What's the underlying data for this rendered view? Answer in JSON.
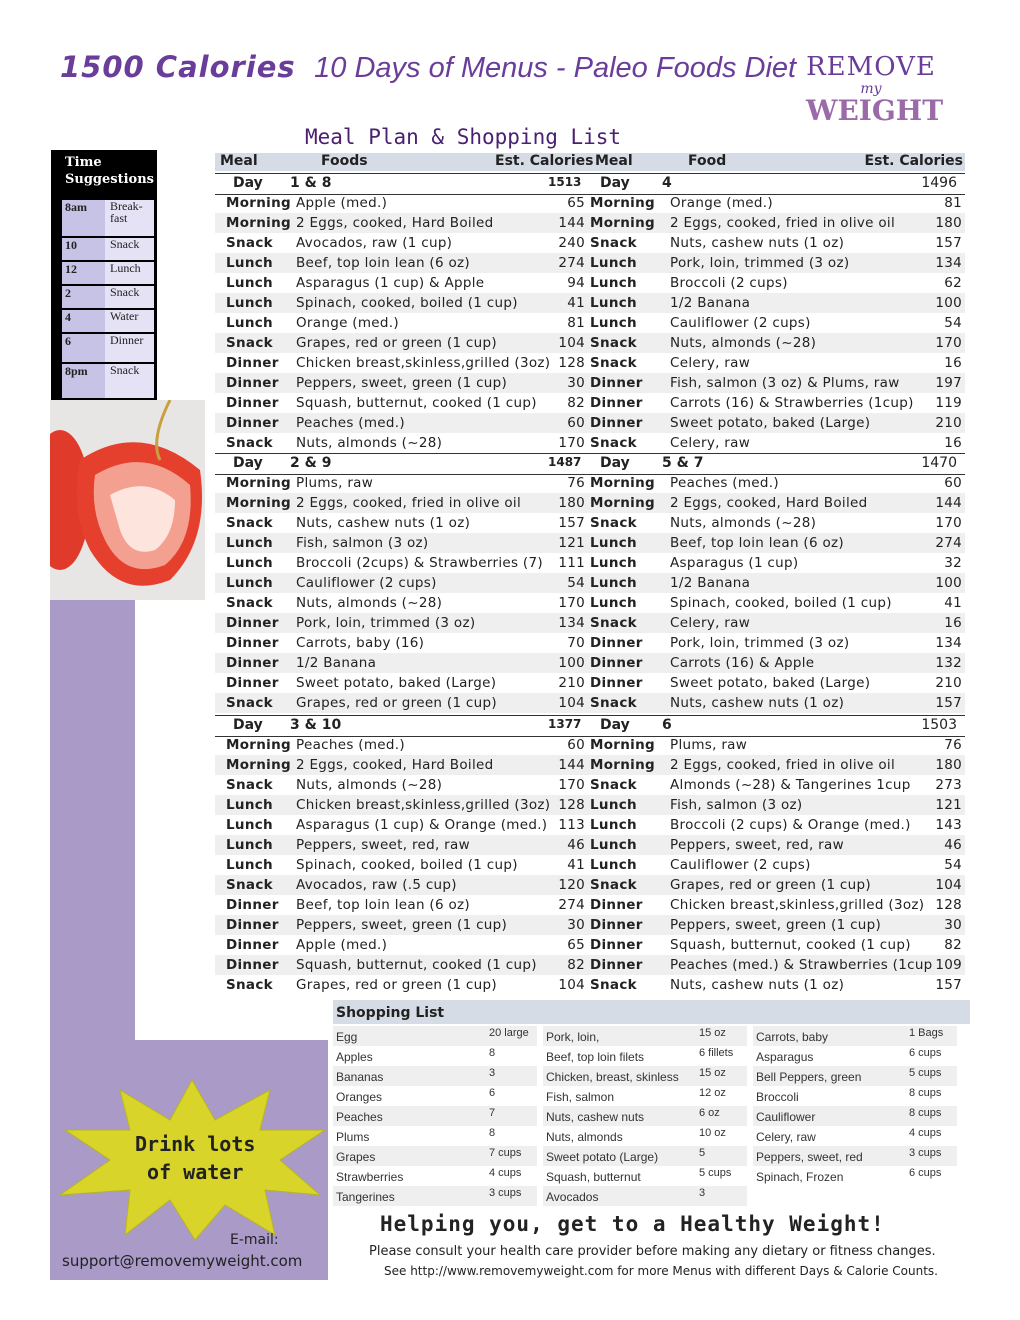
{
  "title": {
    "bold": "1500 Calories",
    "italic": "10 Days of Menus - Paleo Foods Diet"
  },
  "logo": {
    "line1": "REMOVE",
    "line2": "my",
    "line3": "WEIGHT"
  },
  "subtitle": "Meal Plan & Shopping List",
  "time_suggestions": {
    "heading1": "Time",
    "heading2": "Suggestions",
    "rows": [
      [
        "8am",
        "Break-fast"
      ],
      [
        "10",
        "Snack"
      ],
      [
        "12",
        "Lunch"
      ],
      [
        "2",
        "Snack"
      ],
      [
        "4",
        "Water"
      ],
      [
        "6",
        "Dinner"
      ],
      [
        "8pm",
        "Snack"
      ]
    ]
  },
  "header": {
    "meal": "Meal",
    "foods": "Foods",
    "cal": "Est. Calories",
    "meal2": "Meal",
    "food2": "Food",
    "cal2": "Est. Calories"
  },
  "day_label": "Day",
  "blocks": [
    {
      "left_day": "1 & 8",
      "left_total": "1513",
      "right_day": "4",
      "right_total": "1496",
      "rows": [
        [
          "Morning",
          "Apple (med.)",
          "65",
          "Morning",
          "Orange (med.)",
          "81"
        ],
        [
          "Morning",
          "2 Eggs, cooked, Hard Boiled",
          "144",
          "Morning",
          "2 Eggs, cooked, fried in olive oil",
          "180"
        ],
        [
          "Snack",
          "Avocados, raw (1 cup)",
          "240",
          "Snack",
          "Nuts, cashew nuts (1 oz)",
          "157"
        ],
        [
          "Lunch",
          "Beef, top loin lean (6 oz)",
          "274",
          "Lunch",
          "Pork, loin, trimmed (3 oz)",
          "134"
        ],
        [
          "Lunch",
          "Asparagus (1 cup) & Apple",
          "94",
          "Lunch",
          "Broccoli (2 cups)",
          "62"
        ],
        [
          "Lunch",
          "Spinach, cooked, boiled  (1 cup)",
          "41",
          "Lunch",
          "1/2 Banana",
          "100"
        ],
        [
          "Lunch",
          "Orange (med.)",
          "81",
          "Lunch",
          "Cauliflower (2 cups)",
          "54"
        ],
        [
          "Snack",
          "Grapes, red or green  (1 cup)",
          "104",
          "Snack",
          "Nuts, almonds (~28)",
          "170"
        ],
        [
          "Dinner",
          "Chicken breast,skinless,grilled (3oz)",
          "128",
          "Snack",
          "Celery, raw",
          "16"
        ],
        [
          "Dinner",
          "Peppers, sweet, green  (1 cup)",
          "30",
          "Dinner",
          "Fish, salmon (3 oz) & Plums, raw",
          "197"
        ],
        [
          "Dinner",
          "Squash, butternut, cooked  (1 cup)",
          "82",
          "Dinner",
          "Carrots (16) & Strawberries (1cup)",
          "119"
        ],
        [
          "Dinner",
          "Peaches (med.)",
          "60",
          "Dinner",
          "Sweet potato, baked (Large)",
          "210"
        ],
        [
          "Snack",
          "Nuts, almonds (~28)",
          "170",
          "Snack",
          "Celery, raw",
          "16"
        ]
      ]
    },
    {
      "left_day": "2 & 9",
      "left_total": "1487",
      "right_day": "5 & 7",
      "right_total": "1470",
      "rows": [
        [
          "Morning",
          "Plums, raw",
          "76",
          "Morning",
          "Peaches (med.)",
          "60"
        ],
        [
          "Morning",
          "2 Eggs, cooked, fried in olive oil",
          "180",
          "Morning",
          "2 Eggs, cooked, Hard Boiled",
          "144"
        ],
        [
          "Snack",
          "Nuts, cashew nuts (1 oz)",
          "157",
          "Snack",
          "Nuts, almonds (~28)",
          "170"
        ],
        [
          "Lunch",
          "Fish, salmon (3 oz)",
          "121",
          "Lunch",
          "Beef, top loin lean (6 oz)",
          "274"
        ],
        [
          "Lunch",
          "Broccoli (2cups) & Strawberries (7)",
          "111",
          "Lunch",
          "Asparagus (1 cup)",
          "32"
        ],
        [
          "Lunch",
          "Cauliflower (2 cups)",
          "54",
          "Lunch",
          "1/2 Banana",
          "100"
        ],
        [
          "Snack",
          "Nuts, almonds (~28)",
          "170",
          "Lunch",
          "Spinach, cooked, boiled  (1 cup)",
          "41"
        ],
        [
          "Dinner",
          "Pork, loin, trimmed (3 oz)",
          "134",
          "Snack",
          "Celery, raw",
          "16"
        ],
        [
          "Dinner",
          "Carrots, baby  (16)",
          "70",
          "Dinner",
          "Pork, loin, trimmed (3 oz)",
          "134"
        ],
        [
          "Dinner",
          "1/2 Banana",
          "100",
          "Dinner",
          "Carrots (16) & Apple",
          "132"
        ],
        [
          "Dinner",
          "Sweet potato, baked (Large)",
          "210",
          "Dinner",
          "Sweet potato, baked (Large)",
          "210"
        ],
        [
          "Snack",
          "Grapes, red or green  (1 cup)",
          "104",
          "Snack",
          "Nuts, cashew nuts (1 oz)",
          "157"
        ]
      ]
    },
    {
      "left_day": "3 & 10",
      "left_total": "1377",
      "right_day": "6",
      "right_total": "1503",
      "rows": [
        [
          "Morning",
          "Peaches (med.)",
          "60",
          "Morning",
          "Plums, raw",
          "76"
        ],
        [
          "Morning",
          "2 Eggs, cooked, Hard Boiled",
          "144",
          "Morning",
          "2 Eggs, cooked, fried in olive oil",
          "180"
        ],
        [
          "Snack",
          "Nuts, almonds (~28)",
          "170",
          "Snack",
          "Almonds (~28) & Tangerines 1cup",
          "273"
        ],
        [
          "Lunch",
          "Chicken breast,skinless,grilled (3oz)",
          "128",
          "Lunch",
          "Fish, salmon (3 oz)",
          "121"
        ],
        [
          "Lunch",
          "Asparagus (1 cup) & Orange (med.)",
          "113",
          "Lunch",
          "Broccoli (2 cups) & Orange (med.)",
          "143"
        ],
        [
          "Lunch",
          "Peppers, sweet, red, raw",
          "46",
          "Lunch",
          "Peppers, sweet, red, raw",
          "46"
        ],
        [
          "Lunch",
          "Spinach, cooked, boiled  (1 cup)",
          "41",
          "Lunch",
          "Cauliflower (2 cups)",
          "54"
        ],
        [
          "Snack",
          "Avocados, raw (.5 cup)",
          "120",
          "Snack",
          "Grapes, red or green  (1 cup)",
          "104"
        ],
        [
          "Dinner",
          "Beef, top loin lean (6 oz)",
          "274",
          "Dinner",
          "Chicken breast,skinless,grilled (3oz)",
          "128"
        ],
        [
          "Dinner",
          "Peppers, sweet, green  (1 cup)",
          "30",
          "Dinner",
          "Peppers, sweet, green  (1 cup)",
          "30"
        ],
        [
          "Dinner",
          "Apple (med.)",
          "65",
          "Dinner",
          "Squash, butternut, cooked  (1 cup)",
          "82"
        ],
        [
          "Dinner",
          "Squash, butternut, cooked  (1 cup)",
          "82",
          "Dinner",
          "Peaches (med.) & Strawberries (1cup",
          "109"
        ],
        [
          "Snack",
          "Grapes, red or green  (1 cup)",
          "104",
          "Snack",
          "Nuts, cashew nuts (1 oz)",
          "157"
        ]
      ]
    }
  ],
  "shopping": {
    "title": "Shopping List",
    "columns": [
      [
        [
          "Egg",
          "20 large"
        ],
        [
          "Apples",
          "8"
        ],
        [
          "Bananas",
          "3"
        ],
        [
          "Oranges",
          "6"
        ],
        [
          "Peaches",
          "7"
        ],
        [
          "Plums",
          "8"
        ],
        [
          "Grapes",
          "7 cups"
        ],
        [
          "Strawberries",
          "4 cups"
        ],
        [
          "Tangerines",
          "3 cups"
        ]
      ],
      [
        [
          "Pork, loin,",
          "15 oz"
        ],
        [
          "Beef, top loin filets",
          "6 fillets"
        ],
        [
          "Chicken, breast, skinless",
          "15 oz"
        ],
        [
          "Fish, salmon",
          "12 oz"
        ],
        [
          "Nuts, cashew nuts",
          "6 oz"
        ],
        [
          "Nuts, almonds",
          "10 oz"
        ],
        [
          "Sweet potato (Large)",
          "5"
        ],
        [
          "Squash, butternut",
          "5 cups"
        ],
        [
          "Avocados",
          "3"
        ]
      ],
      [
        [
          "Carrots, baby",
          "1 Bags"
        ],
        [
          "Asparagus",
          "6 cups"
        ],
        [
          "Bell Peppers, green",
          "5 cups"
        ],
        [
          "Broccoli",
          "8 cups"
        ],
        [
          "Cauliflower",
          "8 cups"
        ],
        [
          "Celery, raw",
          "4 cups"
        ],
        [
          "Peppers, sweet, red",
          "3 cups"
        ],
        [
          "Spinach, Frozen",
          "6 cups"
        ]
      ]
    ]
  },
  "water": {
    "line1": "Drink lots",
    "line2": "of water"
  },
  "email": {
    "label": "E-mail:",
    "address": "support@removemyweight.com"
  },
  "footer": {
    "slogan": "Helping you,  get  to a Healthy Weight!",
    "disclaimer": "Please consult your health care provider before making any dietary or fitness changes.",
    "see_more": "See http://www.removemyweight.com for more Menus with different Days & Calorie Counts."
  },
  "colors": {
    "accent": "#6a3d9a",
    "purple_band": "#a99ac8",
    "header_bg": "#d6dce6",
    "starburst": "#d8d42a"
  }
}
